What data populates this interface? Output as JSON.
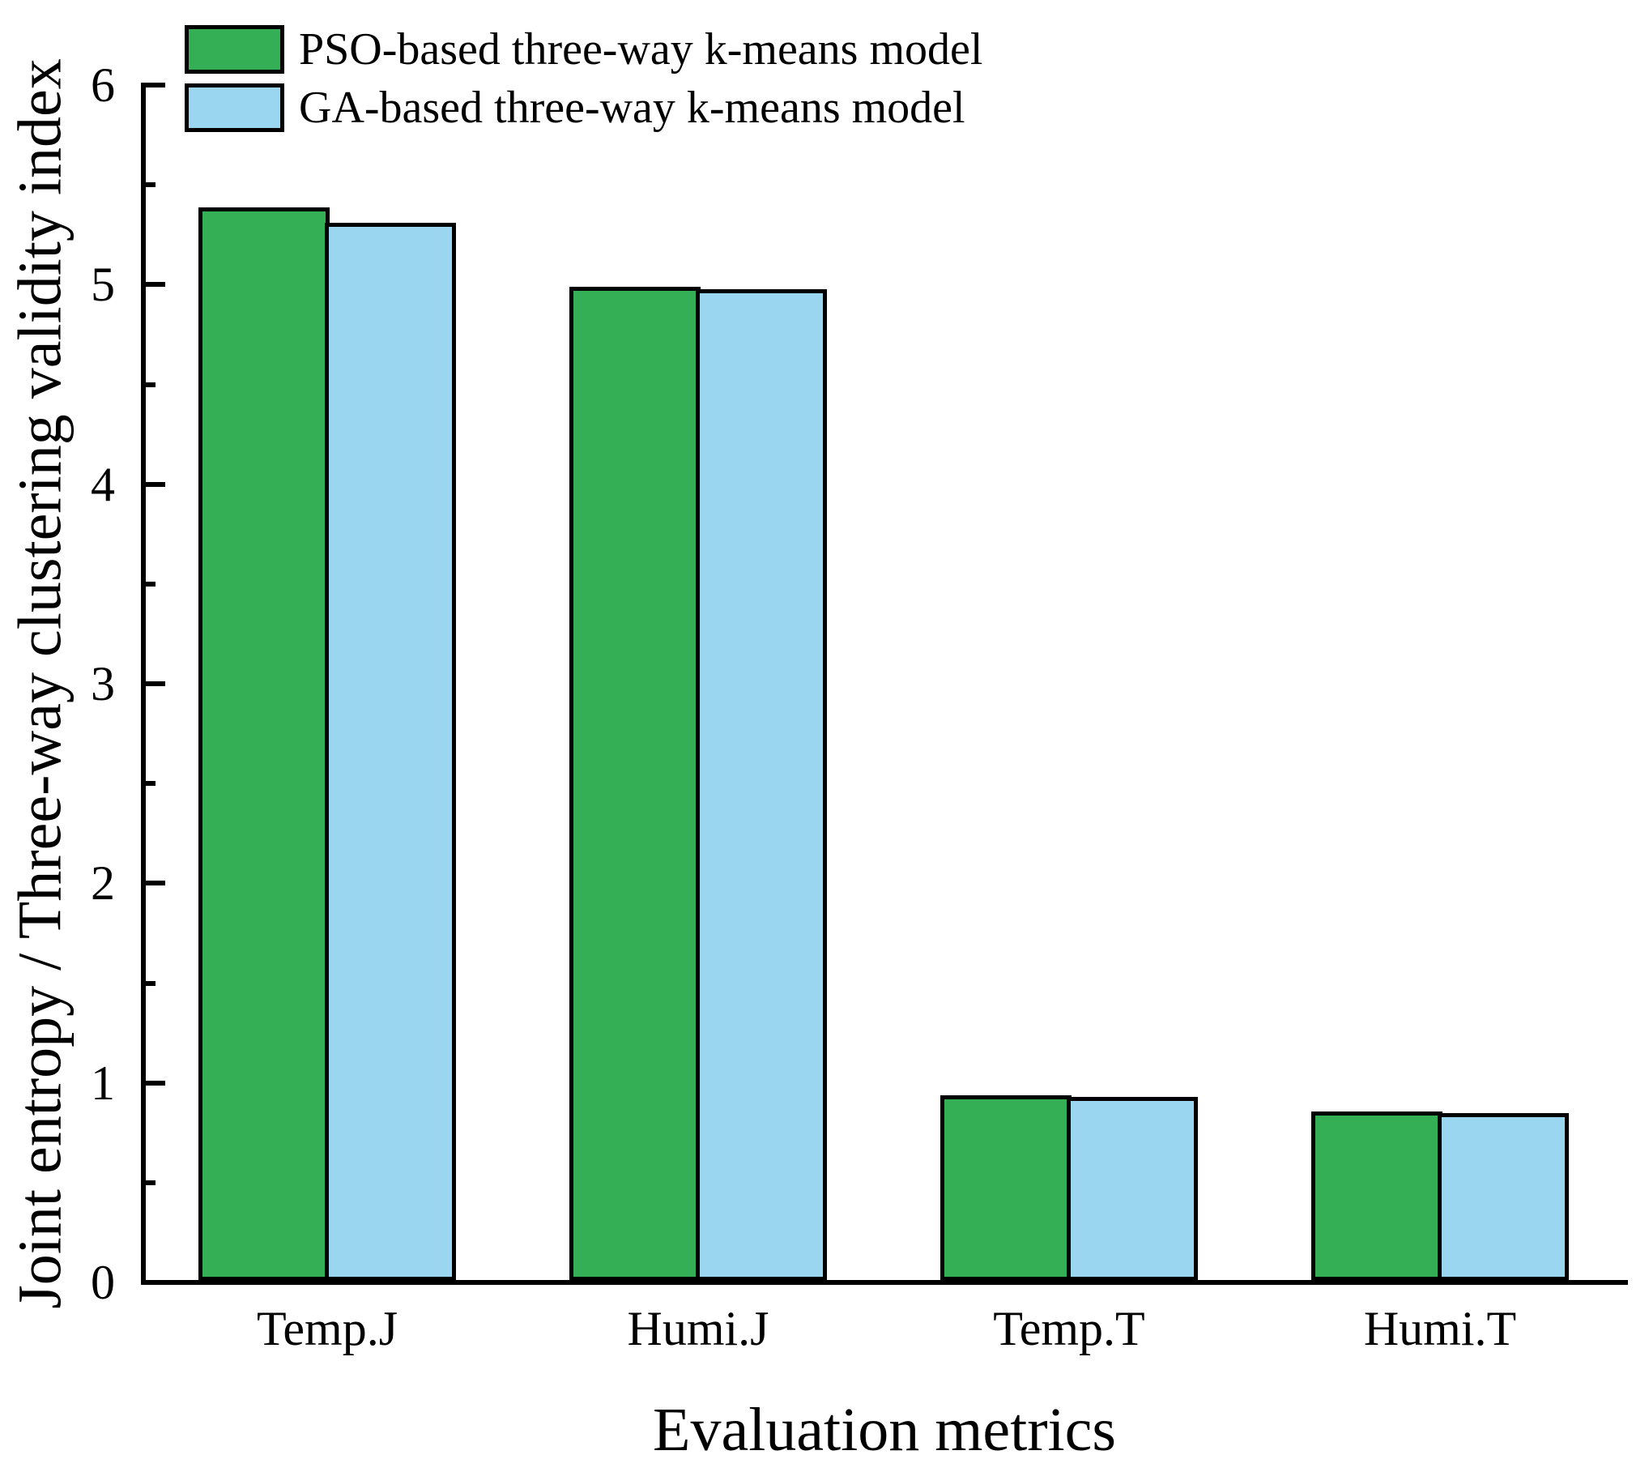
{
  "figure": {
    "background": "#ffffff",
    "axis_color": "#000000"
  },
  "chart_data": {
    "type": "bar",
    "title": "",
    "xlabel": "Evaluation metrics",
    "ylabel": "Joint entropy / Three-way clustering validity index",
    "categories": [
      "Temp.J",
      "Humi.J",
      "Temp.T",
      "Humi.T"
    ],
    "series": [
      {
        "name": "PSO-based three-way k-means model",
        "color": "#35AF55",
        "values": [
          5.38,
          4.98,
          0.93,
          0.85
        ]
      },
      {
        "name": "GA-based three-way k-means model",
        "color": "#9BD6F0",
        "values": [
          5.3,
          4.97,
          0.92,
          0.84
        ]
      }
    ],
    "ylim": [
      0,
      6
    ],
    "yticks": [
      0,
      1,
      2,
      3,
      4,
      5,
      6
    ],
    "ytick_labels": [
      "0",
      "1",
      "2",
      "3",
      "4",
      "5",
      "6"
    ],
    "minor_tick_step": 0.5,
    "grid": false,
    "legend_position": "top-left",
    "bar_border_color": "#000000"
  }
}
